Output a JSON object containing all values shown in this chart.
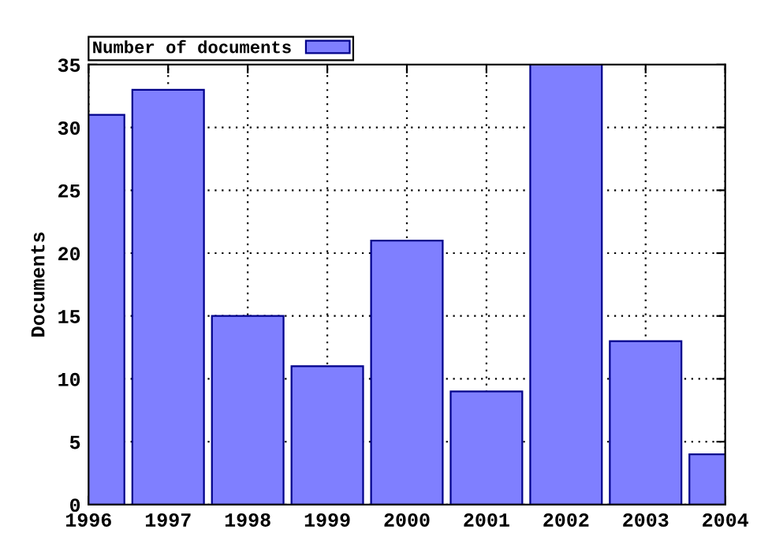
{
  "chart_data": {
    "type": "bar",
    "ylabel": "Documents",
    "x": [
      1996,
      1997,
      1998,
      1999,
      2000,
      2001,
      2002,
      2003,
      2004
    ],
    "series": [
      {
        "name": "Number of documents",
        "color": "#7f7fff",
        "values": [
          31,
          33,
          15,
          11,
          21,
          9,
          35,
          13,
          4
        ]
      }
    ],
    "xlim": [
      1996,
      2004
    ],
    "xticks": [
      1996,
      1997,
      1998,
      1999,
      2000,
      2001,
      2002,
      2003,
      2004
    ],
    "ylim": [
      0,
      35
    ],
    "yticks": [
      0,
      5,
      10,
      15,
      20,
      25,
      30,
      35
    ],
    "grid": true,
    "legend": "top left"
  }
}
